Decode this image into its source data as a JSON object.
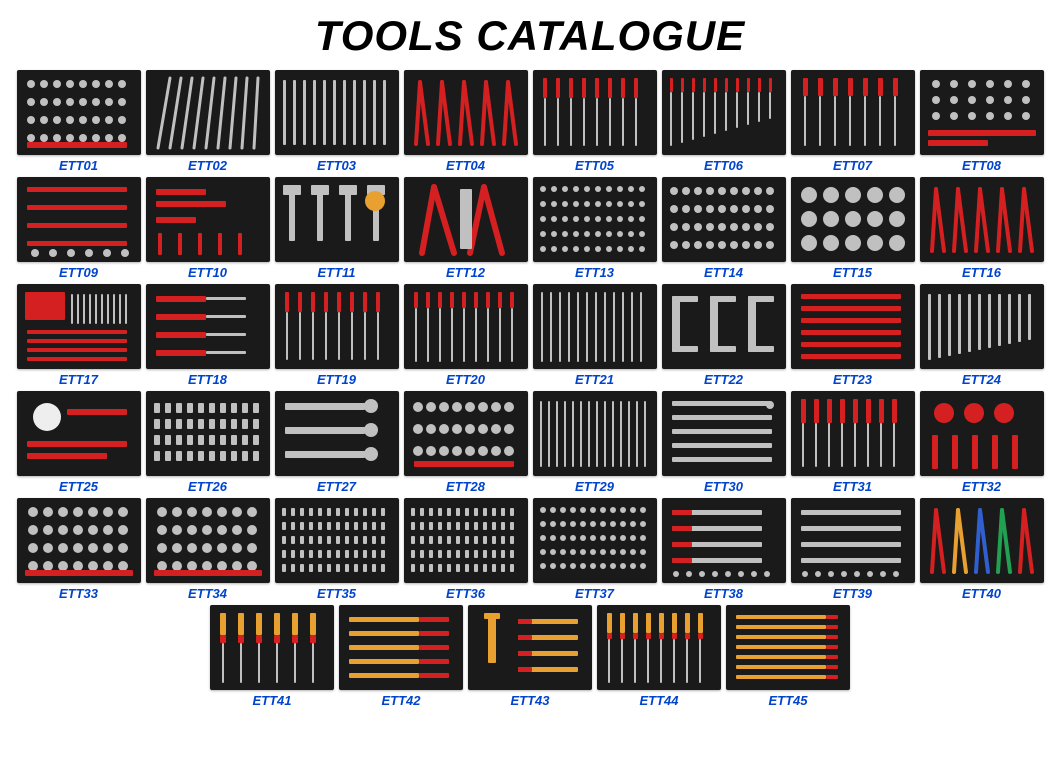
{
  "title": "TOOLS CATALOGUE",
  "grid": {
    "columns_full": 8,
    "columns_last": 5
  },
  "colors": {
    "page_bg": "#ffffff",
    "title": "#000000",
    "label": "#0044cc",
    "tray_bg": "#1a1a1a",
    "steel": "#c0c0c0",
    "red": "#d42020",
    "orange": "#e8a030"
  },
  "items": [
    {
      "code": "ETT01",
      "variant": "sockets"
    },
    {
      "code": "ETT02",
      "variant": "wrenches_fan"
    },
    {
      "code": "ETT03",
      "variant": "long_silver_row"
    },
    {
      "code": "ETT04",
      "variant": "pliers_red"
    },
    {
      "code": "ETT05",
      "variant": "screwdrivers_red"
    },
    {
      "code": "ETT06",
      "variant": "hexkeys_red"
    },
    {
      "code": "ETT07",
      "variant": "picks_red"
    },
    {
      "code": "ETT08",
      "variant": "mixed_socket_red"
    },
    {
      "code": "ETT09",
      "variant": "mixed_red_black"
    },
    {
      "code": "ETT10",
      "variant": "sparse_red"
    },
    {
      "code": "ETT11",
      "variant": "hammers"
    },
    {
      "code": "ETT12",
      "variant": "big_pliers"
    },
    {
      "code": "ETT13",
      "variant": "socket_grid"
    },
    {
      "code": "ETT14",
      "variant": "socket_grid2"
    },
    {
      "code": "ETT15",
      "variant": "discs"
    },
    {
      "code": "ETT16",
      "variant": "pliers_red2"
    },
    {
      "code": "ETT17",
      "variant": "drill_bits"
    },
    {
      "code": "ETT18",
      "variant": "knives"
    },
    {
      "code": "ETT19",
      "variant": "screwdrivers_red2"
    },
    {
      "code": "ETT20",
      "variant": "wrenches_red"
    },
    {
      "code": "ETT21",
      "variant": "long_drivers"
    },
    {
      "code": "ETT22",
      "variant": "clamps"
    },
    {
      "code": "ETT23",
      "variant": "hook_red"
    },
    {
      "code": "ETT24",
      "variant": "wrench_array"
    },
    {
      "code": "ETT25",
      "variant": "gauge"
    },
    {
      "code": "ETT26",
      "variant": "socket_rows"
    },
    {
      "code": "ETT27",
      "variant": "adjustable"
    },
    {
      "code": "ETT28",
      "variant": "impact_set"
    },
    {
      "code": "ETT29",
      "variant": "fine_drivers"
    },
    {
      "code": "ETT30",
      "variant": "ratchet_set"
    },
    {
      "code": "ETT31",
      "variant": "red_drivers"
    },
    {
      "code": "ETT32",
      "variant": "misc_red"
    },
    {
      "code": "ETT33",
      "variant": "socket_big"
    },
    {
      "code": "ETT34",
      "variant": "socket_mid"
    },
    {
      "code": "ETT35",
      "variant": "bit_rows"
    },
    {
      "code": "ETT36",
      "variant": "bit_rows2"
    },
    {
      "code": "ETT37",
      "variant": "dense_socket"
    },
    {
      "code": "ETT38",
      "variant": "ratchet_red"
    },
    {
      "code": "ETT39",
      "variant": "ratchet_silver"
    },
    {
      "code": "ETT40",
      "variant": "pliers_colorful"
    },
    {
      "code": "ETT41",
      "variant": "insulated1"
    },
    {
      "code": "ETT42",
      "variant": "insulated2"
    },
    {
      "code": "ETT43",
      "variant": "insulated3"
    },
    {
      "code": "ETT44",
      "variant": "insulated4"
    },
    {
      "code": "ETT45",
      "variant": "insulated5"
    }
  ]
}
